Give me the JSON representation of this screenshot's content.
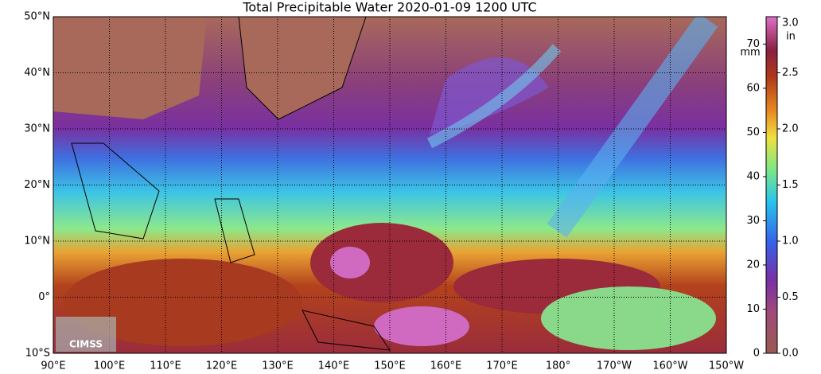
{
  "title": "Total Precipitable Water  2020-01-09 1200 UTC",
  "map": {
    "lat_labels": [
      "50°N",
      "40°N",
      "30°N",
      "20°N",
      "10°N",
      "0°",
      "10°S"
    ],
    "lon_labels": [
      "90°E",
      "100°E",
      "110°E",
      "120°E",
      "130°E",
      "140°E",
      "150°E",
      "160°E",
      "170°E",
      "180°",
      "170°W",
      "160°W",
      "150°W"
    ],
    "logo": "CIMSS"
  },
  "colorbar": {
    "left_units": "mm",
    "left_lim": [
      0,
      76.2
    ],
    "left_ticks": [
      0,
      10,
      20,
      30,
      40,
      50,
      60,
      70
    ],
    "right_units": "in",
    "right_lim": [
      0,
      3.0
    ],
    "right_ticks": [
      {
        "value": 0,
        "label": "0.0"
      },
      0.5,
      {
        "value": 1,
        "label": "1.0"
      },
      1.5,
      {
        "value": 2,
        "label": "2.0"
      },
      2.5,
      {
        "value": 3,
        "label": "3.0"
      }
    ]
  }
}
